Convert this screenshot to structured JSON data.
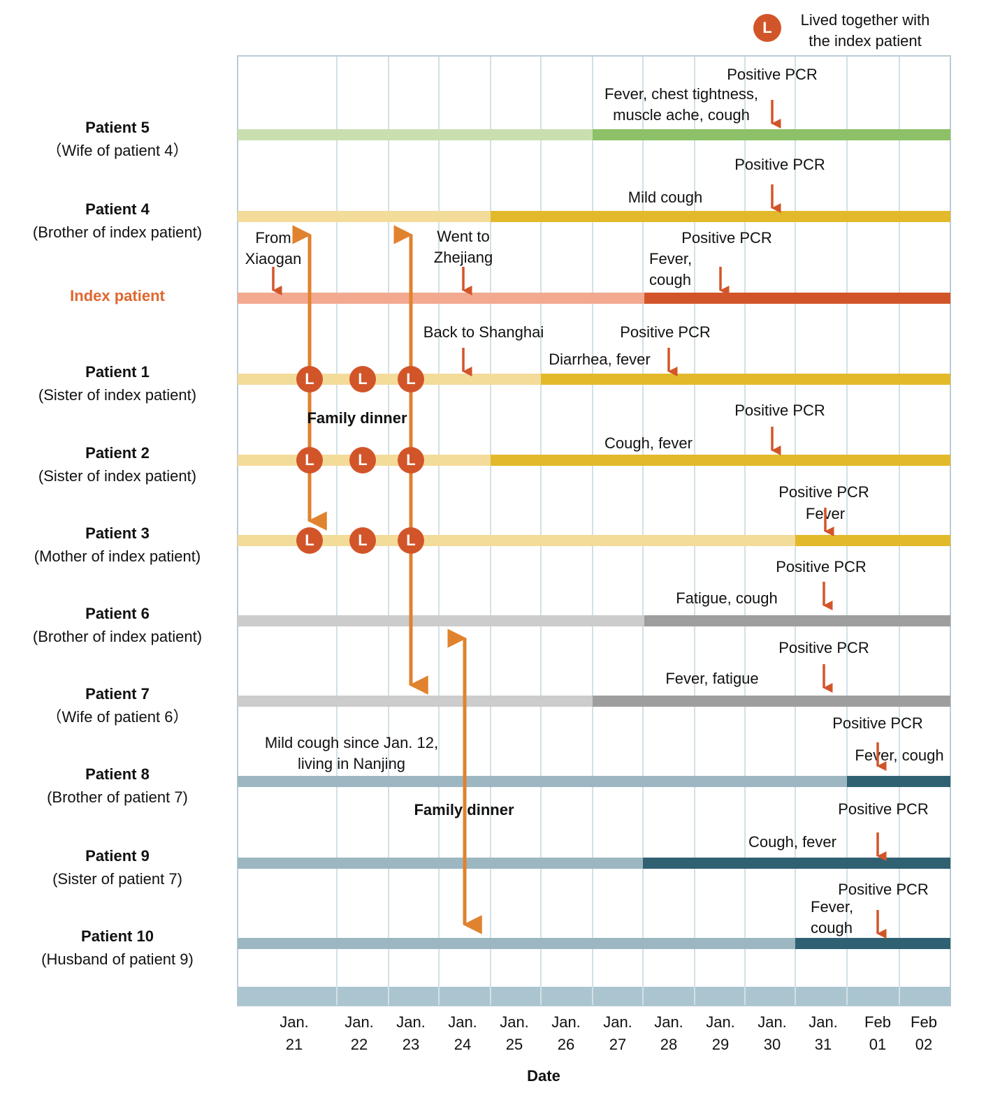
{
  "legend": {
    "symbol": "L",
    "lines": [
      "Lived together with",
      "the index patient"
    ]
  },
  "patients": [
    {
      "name": "Patient 5",
      "relation": "（Wife of patient 4）"
    },
    {
      "name": "Patient 4",
      "relation": "(Brother of index patient)"
    },
    {
      "name": "Index patient",
      "relation": null
    },
    {
      "name": "Patient 1",
      "relation": "(Sister of index patient)"
    },
    {
      "name": "Patient 2",
      "relation": "(Sister of index patient)"
    },
    {
      "name": "Patient 3",
      "relation": "(Mother of index patient)"
    },
    {
      "name": "Patient 6",
      "relation": "(Brother of index patient)"
    },
    {
      "name": "Patient 7",
      "relation": "（Wife of patient 6）"
    },
    {
      "name": "Patient 8",
      "relation": "(Brother of patient 7)"
    },
    {
      "name": "Patient 9",
      "relation": "(Sister of patient 7)"
    },
    {
      "name": "Patient 10",
      "relation": "(Husband of patient 9)"
    }
  ],
  "dates": [
    [
      "Jan.",
      "21"
    ],
    [
      "Jan.",
      "22"
    ],
    [
      "Jan.",
      "23"
    ],
    [
      "Jan.",
      "24"
    ],
    [
      "Jan.",
      "25"
    ],
    [
      "Jan.",
      "26"
    ],
    [
      "Jan.",
      "27"
    ],
    [
      "Jan.",
      "28"
    ],
    [
      "Jan.",
      "29"
    ],
    [
      "Jan.",
      "30"
    ],
    [
      "Jan.",
      "31"
    ],
    [
      "Feb",
      "01"
    ],
    [
      "Feb",
      "02"
    ]
  ],
  "axis_title": "Date",
  "annotations": [
    [
      "Positive PCR"
    ],
    [
      "Fever, chest tightness,",
      "muscle ache, cough"
    ],
    [
      "Positive PCR"
    ],
    [
      "Mild cough"
    ],
    [
      "From",
      "Xiaogan"
    ],
    [
      "Went to",
      "Zhejiang"
    ],
    [
      "Positive PCR"
    ],
    [
      "Fever,",
      "cough"
    ],
    [
      "Back to Shanghai"
    ],
    [
      "Positive PCR"
    ],
    [
      "Diarrhea, fever"
    ],
    [
      "Family dinner"
    ],
    [
      "Positive PCR"
    ],
    [
      "Cough, fever"
    ],
    [
      "Positive PCR"
    ],
    [
      "Fever"
    ],
    [
      "Positive PCR"
    ],
    [
      "Fatigue, cough"
    ],
    [
      "Positive PCR"
    ],
    [
      "Fever, fatigue"
    ],
    [
      "Mild cough since Jan. 12,",
      "living in Nanjing"
    ],
    [
      "Positive PCR"
    ],
    [
      "Fever, cough"
    ],
    [
      "Family dinner"
    ],
    [
      "Positive PCR"
    ],
    [
      "Cough, fever"
    ],
    [
      "Positive PCR"
    ],
    [
      "Fever,",
      "cough"
    ]
  ]
}
